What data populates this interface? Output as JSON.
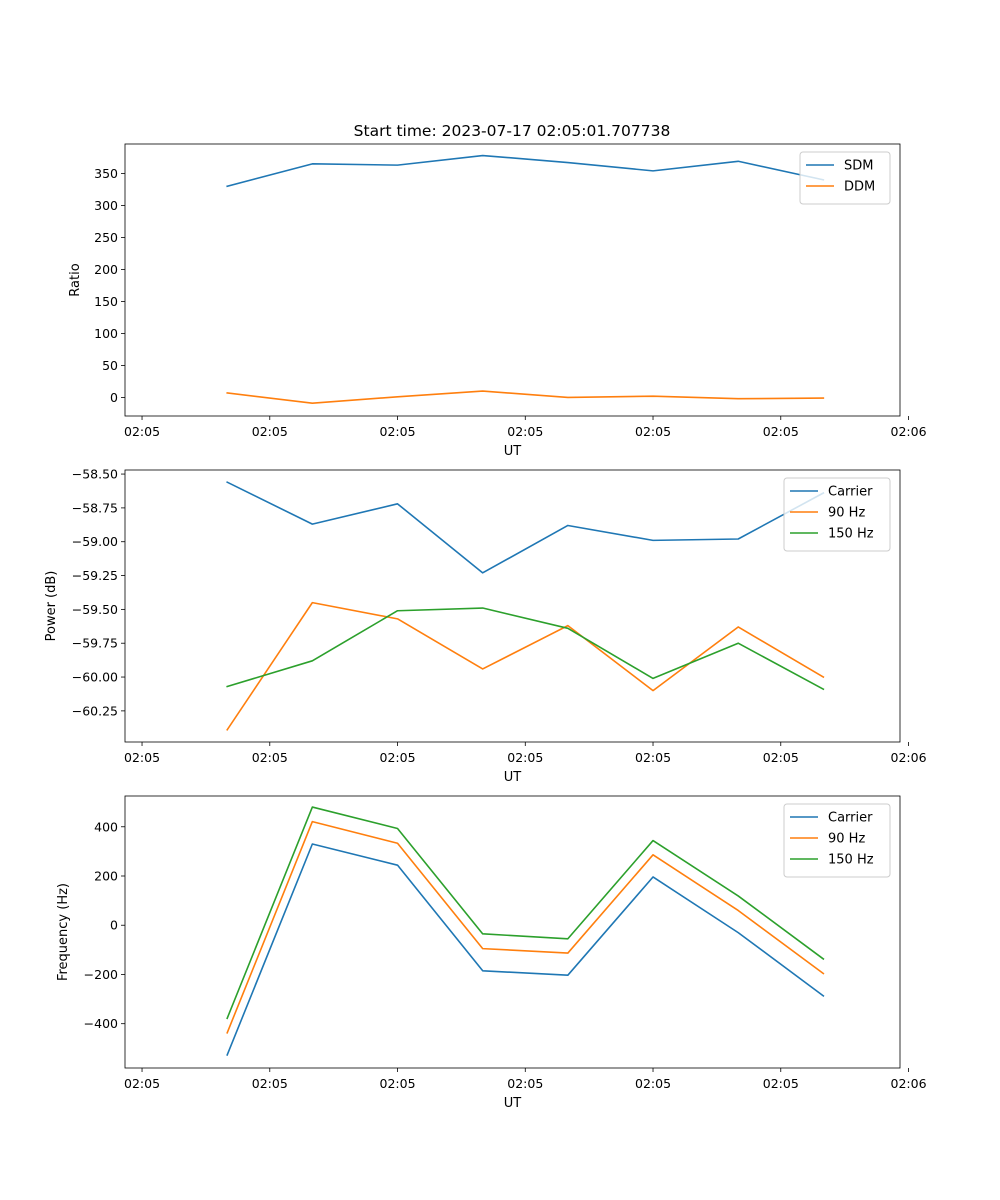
{
  "figure_title": "Start time: 2023-07-17 02:05:01.707738",
  "colors": {
    "blue": "#1f77b4",
    "orange": "#ff7f0e",
    "green": "#2ca02c"
  },
  "chart_data": [
    {
      "type": "line",
      "xlabel": "UT",
      "ylabel": "Ratio",
      "xlim": [
        -0.2,
        8.9
      ],
      "ylim": [
        -29,
        396
      ],
      "x": [
        1,
        2,
        3,
        4,
        5,
        6,
        7,
        8
      ],
      "x_ticks": [
        0,
        1.5,
        3,
        4.5,
        6,
        7.5,
        9
      ],
      "x_tick_labels": [
        "02:05",
        "02:05",
        "02:05",
        "02:05",
        "02:05",
        "02:05",
        "02:06"
      ],
      "y_ticks": [
        0,
        50,
        100,
        150,
        200,
        250,
        300,
        350
      ],
      "y_tick_labels": [
        "0",
        "50",
        "100",
        "150",
        "200",
        "250",
        "300",
        "350"
      ],
      "legend_position": "top-right",
      "series": [
        {
          "name": "SDM",
          "color": "#1f77b4",
          "values": [
            330,
            365,
            363,
            378,
            367,
            354,
            369,
            340
          ]
        },
        {
          "name": "DDM",
          "color": "#ff7f0e",
          "values": [
            7,
            -9,
            1,
            10,
            0,
            2,
            -2,
            -1
          ]
        }
      ]
    },
    {
      "type": "line",
      "xlabel": "UT",
      "ylabel": "Power (dB)",
      "xlim": [
        -0.2,
        8.9
      ],
      "ylim": [
        -60.48,
        -58.47
      ],
      "x": [
        1,
        2,
        3,
        4,
        5,
        6,
        7,
        8
      ],
      "x_ticks": [
        0,
        1.5,
        3,
        4.5,
        6,
        7.5,
        9
      ],
      "x_tick_labels": [
        "02:05",
        "02:05",
        "02:05",
        "02:05",
        "02:05",
        "02:05",
        "02:06"
      ],
      "y_ticks": [
        -60.25,
        -60.0,
        -59.75,
        -59.5,
        -59.25,
        -59.0,
        -58.75,
        -58.5
      ],
      "y_tick_labels": [
        "−60.25",
        "−60.00",
        "−59.75",
        "−59.50",
        "−59.25",
        "−59.00",
        "−58.75",
        "−58.50"
      ],
      "legend_position": "top-right",
      "series": [
        {
          "name": "Carrier",
          "color": "#1f77b4",
          "values": [
            -58.56,
            -58.87,
            -58.72,
            -59.23,
            -58.88,
            -58.99,
            -58.98,
            -58.64
          ]
        },
        {
          "name": "90 Hz",
          "color": "#ff7f0e",
          "values": [
            -60.39,
            -59.45,
            -59.57,
            -59.94,
            -59.62,
            -60.1,
            -59.63,
            -60.0
          ]
        },
        {
          "name": "150 Hz",
          "color": "#2ca02c",
          "values": [
            -60.07,
            -59.88,
            -59.51,
            -59.49,
            -59.64,
            -60.01,
            -59.75,
            -60.09
          ]
        }
      ]
    },
    {
      "type": "line",
      "xlabel": "UT",
      "ylabel": "Frequency (Hz)",
      "xlim": [
        -0.2,
        8.9
      ],
      "ylim": [
        -580,
        525
      ],
      "x": [
        1,
        2,
        3,
        4,
        5,
        6,
        7,
        8
      ],
      "x_ticks": [
        0,
        1.5,
        3,
        4.5,
        6,
        7.5,
        9
      ],
      "x_tick_labels": [
        "02:05",
        "02:05",
        "02:05",
        "02:05",
        "02:05",
        "02:05",
        "02:06"
      ],
      "y_ticks": [
        -400,
        -200,
        0,
        200,
        400
      ],
      "y_tick_labels": [
        "−400",
        "−200",
        "0",
        "200",
        "400"
      ],
      "legend_position": "top-right",
      "series": [
        {
          "name": "Carrier",
          "color": "#1f77b4",
          "values": [
            -527,
            330,
            244,
            -185,
            -203,
            196,
            -30,
            -287
          ]
        },
        {
          "name": "90 Hz",
          "color": "#ff7f0e",
          "values": [
            -437,
            421,
            333,
            -95,
            -113,
            286,
            60,
            -196
          ]
        },
        {
          "name": "150 Hz",
          "color": "#2ca02c",
          "values": [
            -378,
            480,
            393,
            -35,
            -55,
            344,
            119,
            -137
          ]
        }
      ]
    }
  ]
}
